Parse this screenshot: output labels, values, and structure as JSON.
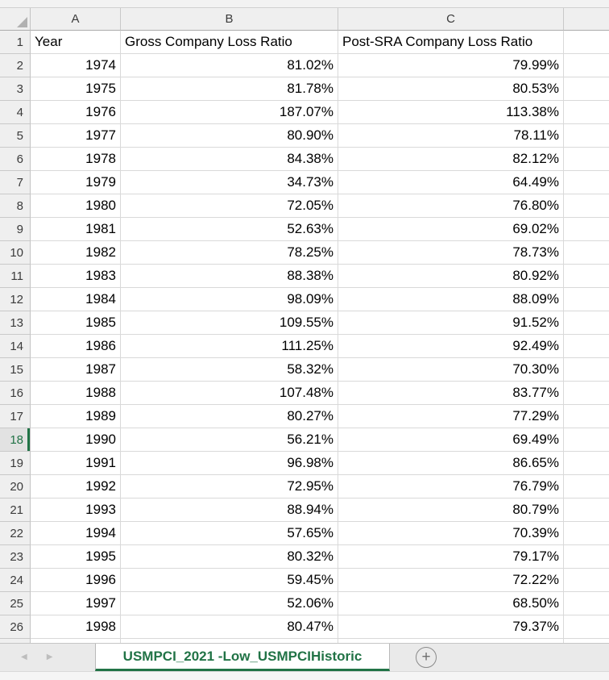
{
  "sheet": {
    "column_letters": [
      "A",
      "B",
      "C",
      ""
    ],
    "header_row": {
      "number": "1",
      "cells": [
        "Year",
        "Gross Company Loss Ratio",
        "Post-SRA Company Loss Ratio",
        ""
      ]
    },
    "selected_row": "18",
    "data_rows": [
      {
        "n": "2",
        "year": "1974",
        "gross": "81.02%",
        "post": "79.99%"
      },
      {
        "n": "3",
        "year": "1975",
        "gross": "81.78%",
        "post": "80.53%"
      },
      {
        "n": "4",
        "year": "1976",
        "gross": "187.07%",
        "post": "113.38%"
      },
      {
        "n": "5",
        "year": "1977",
        "gross": "80.90%",
        "post": "78.11%"
      },
      {
        "n": "6",
        "year": "1978",
        "gross": "84.38%",
        "post": "82.12%"
      },
      {
        "n": "7",
        "year": "1979",
        "gross": "34.73%",
        "post": "64.49%"
      },
      {
        "n": "8",
        "year": "1980",
        "gross": "72.05%",
        "post": "76.80%"
      },
      {
        "n": "9",
        "year": "1981",
        "gross": "52.63%",
        "post": "69.02%"
      },
      {
        "n": "10",
        "year": "1982",
        "gross": "78.25%",
        "post": "78.73%"
      },
      {
        "n": "11",
        "year": "1983",
        "gross": "88.38%",
        "post": "80.92%"
      },
      {
        "n": "12",
        "year": "1984",
        "gross": "98.09%",
        "post": "88.09%"
      },
      {
        "n": "13",
        "year": "1985",
        "gross": "109.55%",
        "post": "91.52%"
      },
      {
        "n": "14",
        "year": "1986",
        "gross": "111.25%",
        "post": "92.49%"
      },
      {
        "n": "15",
        "year": "1987",
        "gross": "58.32%",
        "post": "70.30%"
      },
      {
        "n": "16",
        "year": "1988",
        "gross": "107.48%",
        "post": "83.77%"
      },
      {
        "n": "17",
        "year": "1989",
        "gross": "80.27%",
        "post": "77.29%"
      },
      {
        "n": "18",
        "year": "1990",
        "gross": "56.21%",
        "post": "69.49%"
      },
      {
        "n": "19",
        "year": "1991",
        "gross": "96.98%",
        "post": "86.65%"
      },
      {
        "n": "20",
        "year": "1992",
        "gross": "72.95%",
        "post": "76.79%"
      },
      {
        "n": "21",
        "year": "1993",
        "gross": "88.94%",
        "post": "80.79%"
      },
      {
        "n": "22",
        "year": "1994",
        "gross": "57.65%",
        "post": "70.39%"
      },
      {
        "n": "23",
        "year": "1995",
        "gross": "80.32%",
        "post": "79.17%"
      },
      {
        "n": "24",
        "year": "1996",
        "gross": "59.45%",
        "post": "72.22%"
      },
      {
        "n": "25",
        "year": "1997",
        "gross": "52.06%",
        "post": "68.50%"
      },
      {
        "n": "26",
        "year": "1998",
        "gross": "80.47%",
        "post": "79.37%"
      }
    ]
  },
  "tab_bar": {
    "sheet_tab_label": "USMPCI_2021 -Low_USMPCIHistoric",
    "add_sheet_label": "+",
    "nav_left_icon": "◀",
    "nav_right_icon": "▶"
  },
  "colors": {
    "excel_green": "#217346",
    "header_fill": "#efefef",
    "selected_header_fill": "#e2e2e2",
    "gridline": "#d9d9d9"
  }
}
